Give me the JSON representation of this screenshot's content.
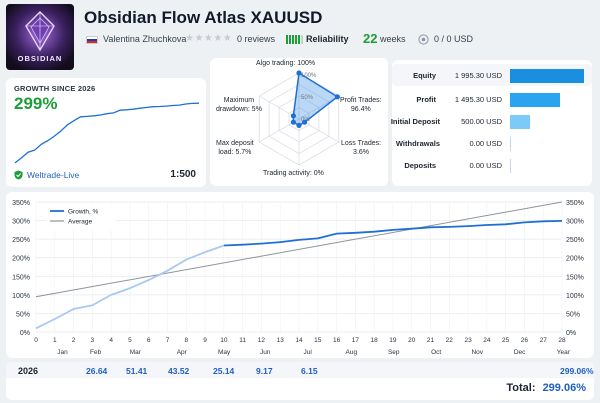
{
  "header": {
    "title": "Obsidian Flow Atlas XAUUSD",
    "author": "Valentina Zhuchkova",
    "reviews": "0 reviews",
    "reliability_label": "Reliability",
    "weeks": "22",
    "weeks_label": "weeks",
    "funds": "0 / 0 USD",
    "logo_text": "OBSIDIAN",
    "rating_stars": 0
  },
  "growth": {
    "label": "GROWTH SINCE 2026",
    "value": "299%",
    "broker": "Weltrade-Live",
    "leverage": "1:500"
  },
  "radar": {
    "algo": "Algo trading: 100%",
    "profit": "Profit Trades:",
    "profit_val": "96.4%",
    "loss": "Loss Trades:",
    "loss_val": "3.6%",
    "activity": "Trading activity: 0%",
    "deposit_load": "Max deposit",
    "deposit_load_val": "load: 5.7%",
    "drawdown": "Maximum",
    "drawdown_val": "drawdown: 5%",
    "scale": [
      "100%",
      "50%",
      "0%"
    ],
    "values": {
      "algo": 100,
      "profit": 96.4,
      "loss": 3.6,
      "activity": 0,
      "deposit_load": 5.7,
      "drawdown": 5
    }
  },
  "balance": [
    {
      "name": "Equity",
      "value": "1 995.30 USD",
      "fraction": 1.0,
      "color": "#1a8fe0"
    },
    {
      "name": "Profit",
      "value": "1 495.30 USD",
      "fraction": 0.68,
      "color": "#2aa3f0"
    },
    {
      "name": "Initial Deposit",
      "value": "500.00 USD",
      "fraction": 0.27,
      "color": "#7ccaf7"
    },
    {
      "name": "Withdrawals",
      "value": "0.00 USD",
      "fraction": 0.0,
      "color": "#7ccaf7"
    },
    {
      "name": "Deposits",
      "value": "0.00 USD",
      "fraction": 0.0,
      "color": "#7ccaf7"
    }
  ],
  "chart_data": {
    "type": "line",
    "title": "",
    "x_ticks": [
      "0",
      "1",
      "2",
      "3",
      "4",
      "5",
      "6",
      "7",
      "8",
      "9",
      "10",
      "11",
      "12",
      "13",
      "14",
      "15",
      "16",
      "17",
      "18",
      "19",
      "20",
      "21",
      "22",
      "23",
      "24",
      "25",
      "26",
      "27",
      "28"
    ],
    "month_labels": [
      "Jan",
      "Feb",
      "Mar",
      "Apr",
      "May",
      "Jun",
      "Jul",
      "Aug",
      "Sep",
      "Oct",
      "Nov",
      "Dec",
      "Year"
    ],
    "y_ticks": [
      "0%",
      "50%",
      "100%",
      "150%",
      "200%",
      "250%",
      "300%",
      "350%"
    ],
    "ylim": [
      0,
      350
    ],
    "xlim": [
      0,
      28
    ],
    "legend": [
      "Growth, %",
      "Average"
    ],
    "legend_position": "top-left",
    "series": [
      {
        "name": "Growth, %",
        "x": [
          0,
          1,
          2,
          3,
          4,
          5,
          6,
          7,
          8,
          9,
          10,
          11,
          12,
          13,
          14,
          15,
          16,
          17,
          18,
          19,
          20,
          21,
          22,
          23,
          24,
          25,
          26,
          27,
          28
        ],
        "y": [
          10,
          35,
          62,
          72,
          100,
          118,
          140,
          165,
          195,
          215,
          233,
          235,
          238,
          242,
          248,
          252,
          265,
          267,
          270,
          275,
          278,
          282,
          283,
          285,
          288,
          290,
          295,
          298,
          299
        ]
      },
      {
        "name": "Average",
        "x": [
          0,
          28
        ],
        "y": [
          95,
          350
        ]
      }
    ]
  },
  "year_table": {
    "year": "2026",
    "values": [
      "26.64",
      "51.41",
      "43.52",
      "25.14",
      "9.17",
      "6.15"
    ],
    "year_total": "299.06%",
    "total_label": "Total:",
    "total_value": "299.06%"
  }
}
